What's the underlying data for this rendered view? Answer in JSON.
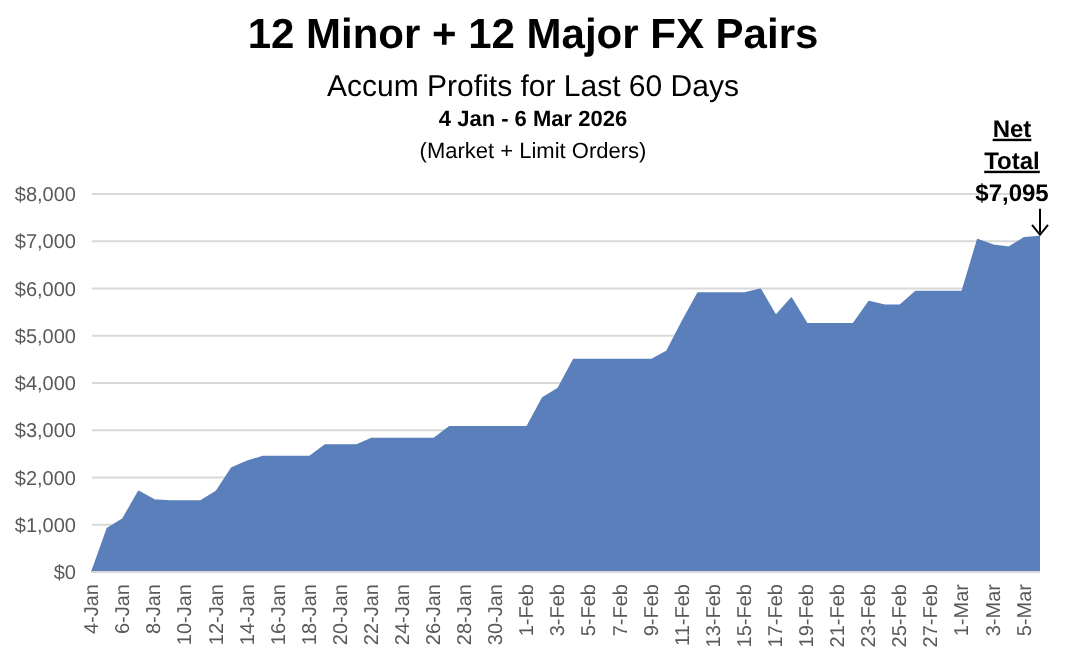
{
  "chart_data": {
    "type": "area",
    "title": "12 Minor + 12 Major FX Pairs",
    "subtitle": "Accum Profits for Last 60 Days",
    "annotations": [
      "4 Jan  - 6 Mar 2026",
      "(Market + Limit Orders)",
      {
        "text": "Net\nTotal\n$7,095",
        "y": 7095
      }
    ],
    "categories": [
      "4-Jan",
      null,
      "6-Jan",
      null,
      "8-Jan",
      null,
      "10-Jan",
      null,
      "12-Jan",
      null,
      "14-Jan",
      null,
      "16-Jan",
      null,
      "18-Jan",
      null,
      "20-Jan",
      null,
      "22-Jan",
      null,
      "24-Jan",
      null,
      "26-Jan",
      null,
      "28-Jan",
      null,
      "30-Jan",
      null,
      "1-Feb",
      null,
      "3-Feb",
      null,
      "5-Feb",
      null,
      "7-Feb",
      null,
      "9-Feb",
      null,
      "11-Feb",
      null,
      "13-Feb",
      null,
      "15-Feb",
      null,
      "17-Feb",
      null,
      "19-Feb",
      null,
      "21-Feb",
      null,
      "23-Feb",
      null,
      "25-Feb",
      null,
      "27-Feb",
      null,
      "1-Mar",
      null,
      "3-Mar",
      null,
      "5-Mar",
      null
    ],
    "series": [
      {
        "color": "#5a7fba",
        "values": [
          0,
          920,
          1120,
          1700,
          1520,
          1500,
          1500,
          1500,
          1700,
          2200,
          2340,
          2440,
          2440,
          2440,
          2440,
          2680,
          2680,
          2680,
          2820,
          2820,
          2820,
          2820,
          2820,
          3070,
          3070,
          3070,
          3070,
          3070,
          3070,
          3680,
          3880,
          4490,
          4490,
          4490,
          4490,
          4490,
          4490,
          4670,
          5300,
          5900,
          5900,
          5900,
          5900,
          5980,
          5420,
          5790,
          5250,
          5250,
          5250,
          5250,
          5720,
          5640,
          5640,
          5930,
          5930,
          5930,
          5930,
          7030,
          6910,
          6870,
          7070,
          7095
        ]
      }
    ],
    "ylim": [
      0,
      8000
    ],
    "yticks": [
      {
        "value": 0,
        "label": "$0"
      },
      {
        "value": 1000,
        "label": "$1,000"
      },
      {
        "value": 2000,
        "label": "$2,000"
      },
      {
        "value": 3000,
        "label": "$3,000"
      },
      {
        "value": 4000,
        "label": "$4,000"
      },
      {
        "value": 5000,
        "label": "$5,000"
      },
      {
        "value": 6000,
        "label": "$6,000"
      },
      {
        "value": 7000,
        "label": "$7,000"
      },
      {
        "value": 8000,
        "label": "$8,000"
      }
    ],
    "grid": "y",
    "legend": false
  }
}
